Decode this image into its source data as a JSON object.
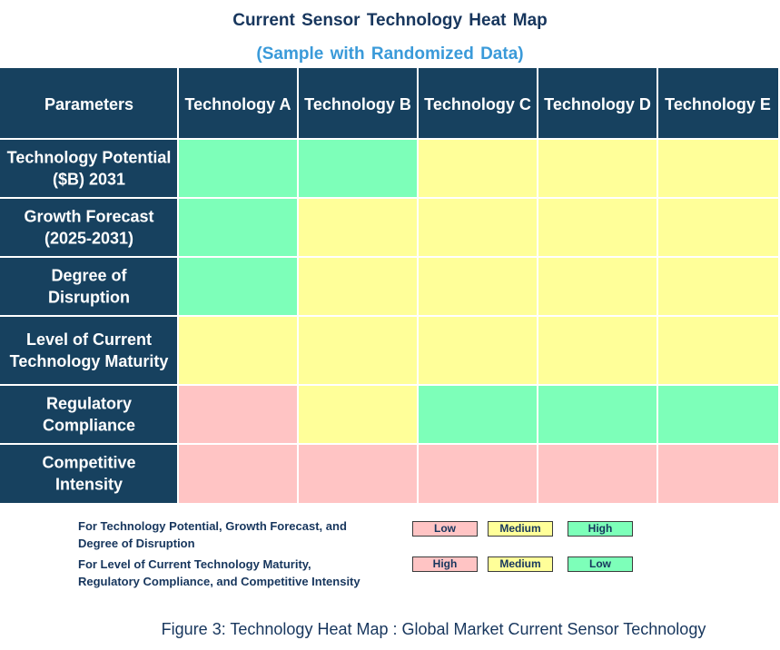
{
  "title": "Current Sensor Technology Heat Map",
  "subtitle": "(Sample with Randomized Data)",
  "colors": {
    "header_bg": "#17415f",
    "high": "#7dffb9",
    "medium": "#ffff99",
    "low": "#ffc4c4"
  },
  "chart_data": {
    "type": "heatmap",
    "corner_label": "Parameters",
    "columns": [
      "Technology A",
      "Technology B",
      "Technology C",
      "Technology D",
      "Technology E"
    ],
    "rows": [
      {
        "label": [
          "Technology Potential",
          "($B) 2031"
        ],
        "levels": [
          "high",
          "high",
          "medium",
          "medium",
          "medium"
        ]
      },
      {
        "label": [
          "Growth Forecast",
          "(2025-2031)"
        ],
        "levels": [
          "high",
          "medium",
          "medium",
          "medium",
          "medium"
        ]
      },
      {
        "label": [
          "Degree of",
          "Disruption"
        ],
        "levels": [
          "high",
          "medium",
          "medium",
          "medium",
          "medium"
        ]
      },
      {
        "label": [
          "Level of Current",
          "Technology Maturity"
        ],
        "levels": [
          "medium",
          "medium",
          "medium",
          "medium",
          "medium"
        ]
      },
      {
        "label": [
          "Regulatory",
          "Compliance"
        ],
        "levels": [
          "low",
          "medium",
          "high",
          "high",
          "high"
        ]
      },
      {
        "label": [
          "Competitive",
          "Intensity"
        ],
        "levels": [
          "low",
          "low",
          "low",
          "low",
          "low"
        ]
      }
    ]
  },
  "legend": {
    "row1": {
      "text_line1": "For Technology Potential, Growth Forecast, and",
      "text_line2": "Degree of Disruption",
      "boxes": [
        {
          "label": "Low",
          "level": "low"
        },
        {
          "label": "Medium",
          "level": "medium"
        },
        {
          "label": "High",
          "level": "high"
        }
      ]
    },
    "row2": {
      "text_line1": "For Level of Current Technology Maturity,",
      "text_line2": "Regulatory Compliance, and Competitive Intensity",
      "boxes": [
        {
          "label": "High",
          "level": "low"
        },
        {
          "label": "Medium",
          "level": "medium"
        },
        {
          "label": "Low",
          "level": "high"
        }
      ]
    }
  },
  "caption": "Figure 3: Technology Heat Map : Global Market Current Sensor Technology"
}
